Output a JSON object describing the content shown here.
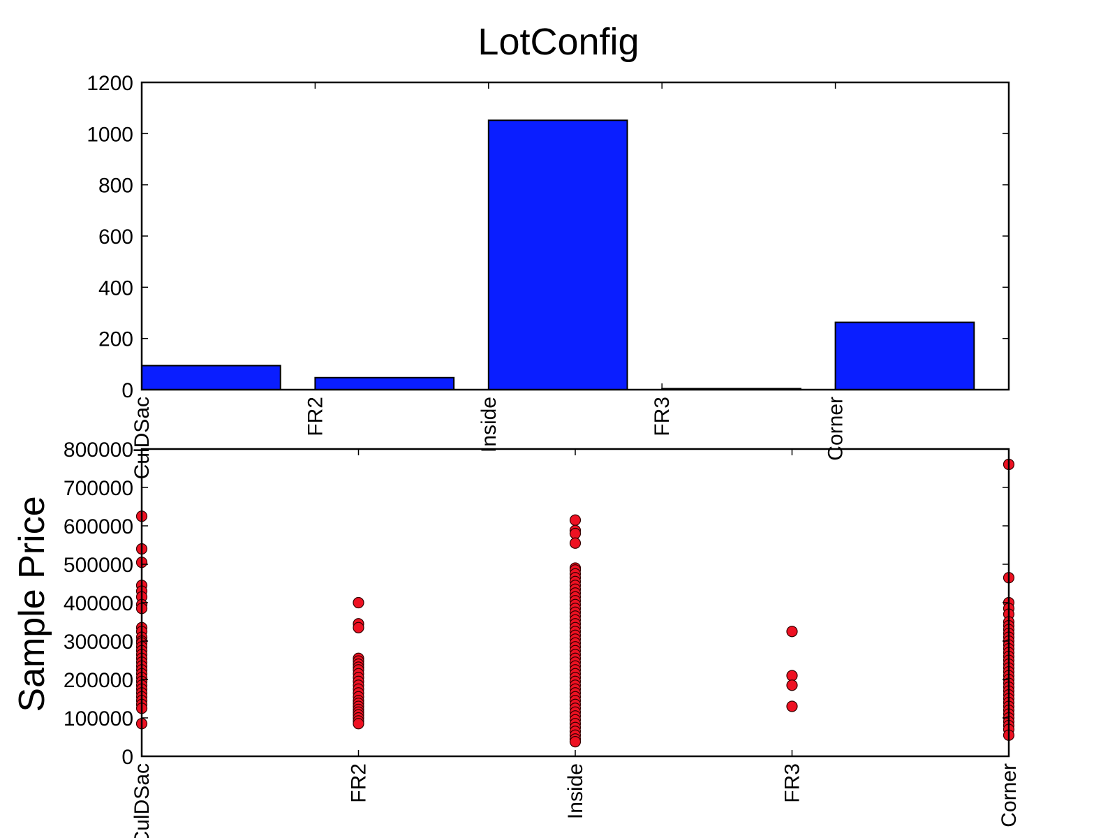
{
  "title": "LotConfig",
  "colors": {
    "bar_fill": "#0a1eff",
    "point_fill": "#ee1122",
    "axis": "#000000"
  },
  "chart_data": [
    {
      "type": "bar",
      "categories": [
        "CulDSac",
        "FR2",
        "Inside",
        "FR3",
        "Corner"
      ],
      "values": [
        94,
        47,
        1052,
        4,
        263
      ],
      "ylim": [
        0,
        1200
      ],
      "yticks": [
        0,
        200,
        400,
        600,
        800,
        1000,
        1200
      ],
      "ytick_labels": [
        "0",
        "200",
        "400",
        "600",
        "800",
        "1000",
        "1200"
      ],
      "xlabel": "",
      "ylabel": "",
      "grid": false
    },
    {
      "type": "scatter",
      "categories": [
        "CulDSac",
        "FR2",
        "Inside",
        "FR3",
        "Corner"
      ],
      "ylabel": "Sample Price",
      "xlabel": "",
      "ylim": [
        0,
        800000
      ],
      "yticks": [
        0,
        100000,
        200000,
        300000,
        400000,
        500000,
        600000,
        700000,
        800000
      ],
      "ytick_labels": [
        "0",
        "100000",
        "200000",
        "300000",
        "400000",
        "500000",
        "600000",
        "700000",
        "800000"
      ],
      "grid": false,
      "series": [
        {
          "category": "CulDSac",
          "values": [
            625000,
            540000,
            505000,
            445000,
            430000,
            415000,
            395000,
            385000,
            335000,
            325000,
            310000,
            300000,
            295000,
            285000,
            275000,
            265000,
            255000,
            245000,
            235000,
            225000,
            215000,
            205000,
            195000,
            185000,
            175000,
            165000,
            155000,
            145000,
            135000,
            125000,
            85000
          ]
        },
        {
          "category": "FR2",
          "values": [
            400000,
            345000,
            335000,
            255000,
            248000,
            240000,
            232000,
            225000,
            215000,
            205000,
            195000,
            185000,
            175000,
            165000,
            155000,
            145000,
            138000,
            130000,
            122000,
            115000,
            108000,
            100000,
            92000,
            85000
          ]
        },
        {
          "category": "Inside",
          "values": [
            615000,
            588000,
            580000,
            555000,
            490000,
            485000,
            475000,
            465000,
            455000,
            445000,
            435000,
            425000,
            415000,
            405000,
            395000,
            385000,
            375000,
            365000,
            355000,
            345000,
            335000,
            325000,
            315000,
            305000,
            295000,
            285000,
            275000,
            265000,
            255000,
            245000,
            235000,
            225000,
            215000,
            205000,
            195000,
            185000,
            175000,
            165000,
            155000,
            145000,
            135000,
            125000,
            115000,
            105000,
            95000,
            85000,
            75000,
            65000,
            55000,
            45000,
            38000
          ]
        },
        {
          "category": "FR3",
          "values": [
            325000,
            210000,
            185000,
            130000
          ]
        },
        {
          "category": "Corner",
          "values": [
            760000,
            465000,
            400000,
            385000,
            370000,
            350000,
            340000,
            330000,
            320000,
            310000,
            300000,
            290000,
            280000,
            270000,
            260000,
            250000,
            240000,
            230000,
            220000,
            210000,
            200000,
            190000,
            180000,
            170000,
            160000,
            150000,
            140000,
            130000,
            120000,
            110000,
            100000,
            90000,
            80000,
            70000,
            55000
          ]
        }
      ]
    }
  ]
}
